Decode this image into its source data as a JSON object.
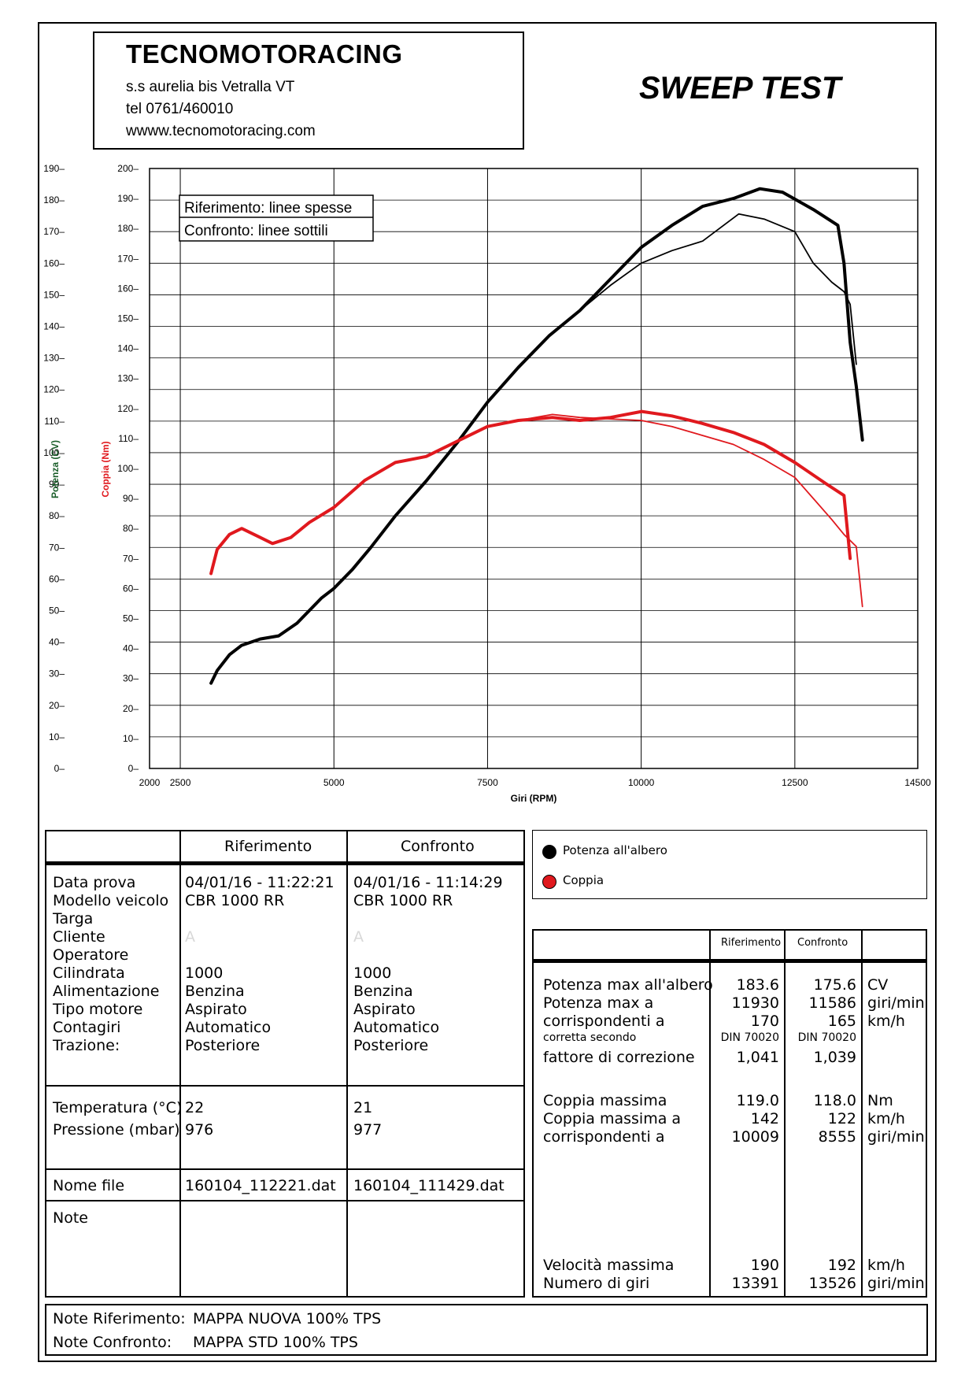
{
  "header": {
    "company": "TECNOMOTORACING",
    "address": "s.s aurelia bis  Vetralla  VT",
    "phone": "tel 0761/460010",
    "website": "wwww.tecnomotoracing.com",
    "title": "SWEEP TEST"
  },
  "chart_data": {
    "type": "line",
    "xlabel": "Giri (RPM)",
    "ylabel_left": "Potenza (CV)",
    "ylabel_right": "Coppia (Nm)",
    "xlim": [
      2000,
      14500
    ],
    "x_ticks": [
      "2000",
      "2500",
      "5000",
      "7500",
      "10000",
      "12500",
      "14500"
    ],
    "ylim_power": [
      0,
      190
    ],
    "ylim_torque": [
      0,
      200
    ],
    "y_ticks_power": [
      "0",
      "10",
      "20",
      "30",
      "40",
      "50",
      "60",
      "70",
      "80",
      "90",
      "100",
      "110",
      "120",
      "130",
      "140",
      "150",
      "160",
      "170",
      "180",
      "190"
    ],
    "y_ticks_power_labels": [
      "0",
      "10",
      "20",
      "30",
      "40",
      "50",
      "60",
      "70",
      "80",
      "90",
      "100",
      "110",
      "120",
      "130",
      "140",
      "150",
      "160",
      "170",
      "180",
      "190"
    ],
    "y_ticks_torque": [
      "0",
      "10",
      "20",
      "30",
      "40",
      "50",
      "60",
      "70",
      "80",
      "90",
      "100",
      "110",
      "120",
      "130",
      "140",
      "150",
      "160",
      "170",
      "180",
      "190",
      "200"
    ],
    "legend_box": [
      "Riferimento: linee spesse",
      "Confronto: linee sottili"
    ],
    "grid": true,
    "series": [
      {
        "name": "Potenza all'albero",
        "run": "Riferimento",
        "color": "#000000",
        "width": "thick",
        "points": [
          [
            3000,
            27
          ],
          [
            3100,
            31
          ],
          [
            3300,
            36
          ],
          [
            3500,
            39
          ],
          [
            3800,
            41
          ],
          [
            4100,
            42
          ],
          [
            4400,
            46
          ],
          [
            4800,
            54
          ],
          [
            5000,
            57
          ],
          [
            5300,
            63
          ],
          [
            5600,
            70
          ],
          [
            6000,
            80
          ],
          [
            6500,
            91
          ],
          [
            7000,
            103
          ],
          [
            7500,
            116
          ],
          [
            8000,
            127
          ],
          [
            8500,
            137
          ],
          [
            9000,
            145
          ],
          [
            9500,
            155
          ],
          [
            10000,
            165
          ],
          [
            10500,
            172
          ],
          [
            11000,
            178
          ],
          [
            11500,
            180.5
          ],
          [
            11930,
            183.6
          ],
          [
            12300,
            182.5
          ],
          [
            12800,
            177
          ],
          [
            13200,
            172
          ],
          [
            13300,
            160
          ],
          [
            13400,
            135
          ],
          [
            13500,
            121
          ],
          [
            13600,
            104
          ]
        ]
      },
      {
        "name": "Potenza all'albero",
        "run": "Confronto",
        "color": "#000000",
        "width": "thin",
        "points": [
          [
            3000,
            27
          ],
          [
            3100,
            31
          ],
          [
            3300,
            36
          ],
          [
            3500,
            39
          ],
          [
            3800,
            41
          ],
          [
            4100,
            42
          ],
          [
            4400,
            46
          ],
          [
            4800,
            54
          ],
          [
            5000,
            57
          ],
          [
            5300,
            63
          ],
          [
            5600,
            70
          ],
          [
            6000,
            80
          ],
          [
            6500,
            91
          ],
          [
            7000,
            103
          ],
          [
            7500,
            116
          ],
          [
            8000,
            127
          ],
          [
            8500,
            137
          ],
          [
            9000,
            145
          ],
          [
            9500,
            153
          ],
          [
            10000,
            160
          ],
          [
            10500,
            164
          ],
          [
            11000,
            167
          ],
          [
            11586,
            175.6
          ],
          [
            12000,
            174
          ],
          [
            12500,
            170
          ],
          [
            12800,
            160
          ],
          [
            13100,
            154
          ],
          [
            13300,
            151
          ],
          [
            13400,
            147
          ],
          [
            13500,
            128
          ]
        ]
      },
      {
        "name": "Coppia",
        "run": "Riferimento",
        "color": "#e0191e",
        "width": "thick",
        "points": [
          [
            3000,
            65
          ],
          [
            3100,
            73
          ],
          [
            3300,
            78
          ],
          [
            3500,
            80
          ],
          [
            3800,
            77
          ],
          [
            4000,
            75
          ],
          [
            4300,
            77
          ],
          [
            4600,
            82
          ],
          [
            5000,
            87
          ],
          [
            5500,
            96
          ],
          [
            6000,
            102
          ],
          [
            6500,
            104
          ],
          [
            7000,
            109
          ],
          [
            7500,
            114
          ],
          [
            8000,
            116
          ],
          [
            8555,
            117
          ],
          [
            9000,
            116
          ],
          [
            9500,
            117
          ],
          [
            10009,
            119
          ],
          [
            10500,
            117.5
          ],
          [
            11000,
            115
          ],
          [
            11500,
            112
          ],
          [
            12000,
            108
          ],
          [
            12500,
            102
          ],
          [
            13000,
            95
          ],
          [
            13300,
            91
          ],
          [
            13400,
            70
          ]
        ]
      },
      {
        "name": "Coppia",
        "run": "Confronto",
        "color": "#e0191e",
        "width": "thin",
        "points": [
          [
            3000,
            65
          ],
          [
            3100,
            73
          ],
          [
            3300,
            78
          ],
          [
            3500,
            80
          ],
          [
            3800,
            77
          ],
          [
            4000,
            75
          ],
          [
            4300,
            77
          ],
          [
            4600,
            82
          ],
          [
            5000,
            87
          ],
          [
            5500,
            96
          ],
          [
            6000,
            102
          ],
          [
            6500,
            104
          ],
          [
            7000,
            109
          ],
          [
            7500,
            114
          ],
          [
            8000,
            116
          ],
          [
            8555,
            118
          ],
          [
            9000,
            117
          ],
          [
            9500,
            116.5
          ],
          [
            10000,
            116
          ],
          [
            10500,
            114
          ],
          [
            11000,
            111
          ],
          [
            11500,
            108
          ],
          [
            12000,
            103
          ],
          [
            12500,
            97
          ],
          [
            12800,
            90
          ],
          [
            13100,
            83
          ],
          [
            13300,
            78
          ],
          [
            13500,
            74
          ],
          [
            13600,
            54
          ]
        ]
      }
    ]
  },
  "legend": [
    {
      "label": "Potenza all'albero",
      "color": "#000000"
    },
    {
      "label": "Coppia",
      "color": "#e0191e"
    }
  ],
  "info_table": {
    "col_headers": [
      "Riferimento",
      "Confronto"
    ],
    "labels": [
      "Data prova",
      "Modello veicolo",
      "Targa",
      "Cliente",
      "Operatore",
      "Cilindrata",
      "Alimentazione",
      "Tipo motore",
      "Contagiri",
      "Trazione:"
    ],
    "rif": [
      "04/01/16 - 11:22:21",
      "CBR 1000 RR",
      "",
      "A",
      "",
      "1000",
      "Benzina",
      "Aspirato",
      "Automatico",
      "Posteriore"
    ],
    "conf": [
      "04/01/16 - 11:14:29",
      "CBR 1000 RR",
      "",
      "A",
      "",
      "1000",
      "Benzina",
      "Aspirato",
      "Automatico",
      "Posteriore"
    ],
    "env_labels": [
      "Temperatura (°C)",
      "Pressione (mbar)"
    ],
    "env_rif": [
      "22",
      "976"
    ],
    "env_conf": [
      "21",
      "977"
    ],
    "file_label": "Nome file",
    "file_rif": "160104_112221.dat",
    "file_conf": "160104_111429.dat",
    "note_label": "Note"
  },
  "results_table": {
    "col_headers": [
      "Riferimento",
      "Confronto"
    ],
    "power_labels": [
      "Potenza max all'albero",
      "Potenza max a",
      "corrispondenti a"
    ],
    "power_rif": [
      "183.6",
      "11930",
      "170"
    ],
    "power_conf": [
      "175.6",
      "11586",
      "165"
    ],
    "power_units": [
      "CV",
      "giri/min",
      "km/h"
    ],
    "corr_label": "corretta secondo",
    "corr_rif": "DIN 70020",
    "corr_conf": "DIN 70020",
    "factor_label": "fattore di correzione",
    "factor_rif": "1,041",
    "factor_conf": "1,039",
    "torque_labels": [
      "Coppia massima",
      "Coppia massima a",
      "corrispondenti a"
    ],
    "torque_rif": [
      "119.0",
      "142",
      "10009"
    ],
    "torque_conf": [
      "118.0",
      "122",
      "8555"
    ],
    "torque_units": [
      "Nm",
      "km/h",
      "giri/min"
    ],
    "speed_labels": [
      "Velocità massima",
      "Numero di giri"
    ],
    "speed_rif": [
      "190",
      "13391"
    ],
    "speed_conf": [
      "192",
      "13526"
    ],
    "speed_units": [
      "km/h",
      "giri/min"
    ]
  },
  "footer_notes": {
    "rif_label": "Note Riferimento:",
    "rif_value": "MAPPA NUOVA  100% TPS",
    "conf_label": "Note Confronto:",
    "conf_value": "MAPPA STD 100% TPS"
  }
}
